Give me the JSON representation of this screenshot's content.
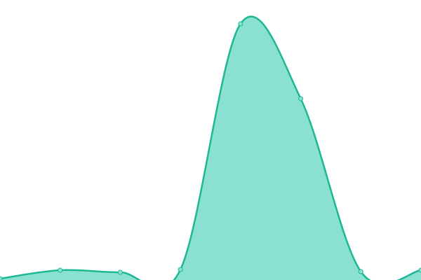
{
  "chart_data": {
    "type": "area",
    "categories": [
      null,
      null,
      null,
      null,
      null,
      null,
      null,
      null
    ],
    "series": [
      {
        "color": "#1db892",
        "fill": "#8be1d1",
        "values": [
          2,
          14,
          11,
          15,
          366,
          259,
          12,
          14
        ]
      }
    ],
    "ylim": [
      0,
      400
    ],
    "markers": true,
    "smooth": true
  }
}
